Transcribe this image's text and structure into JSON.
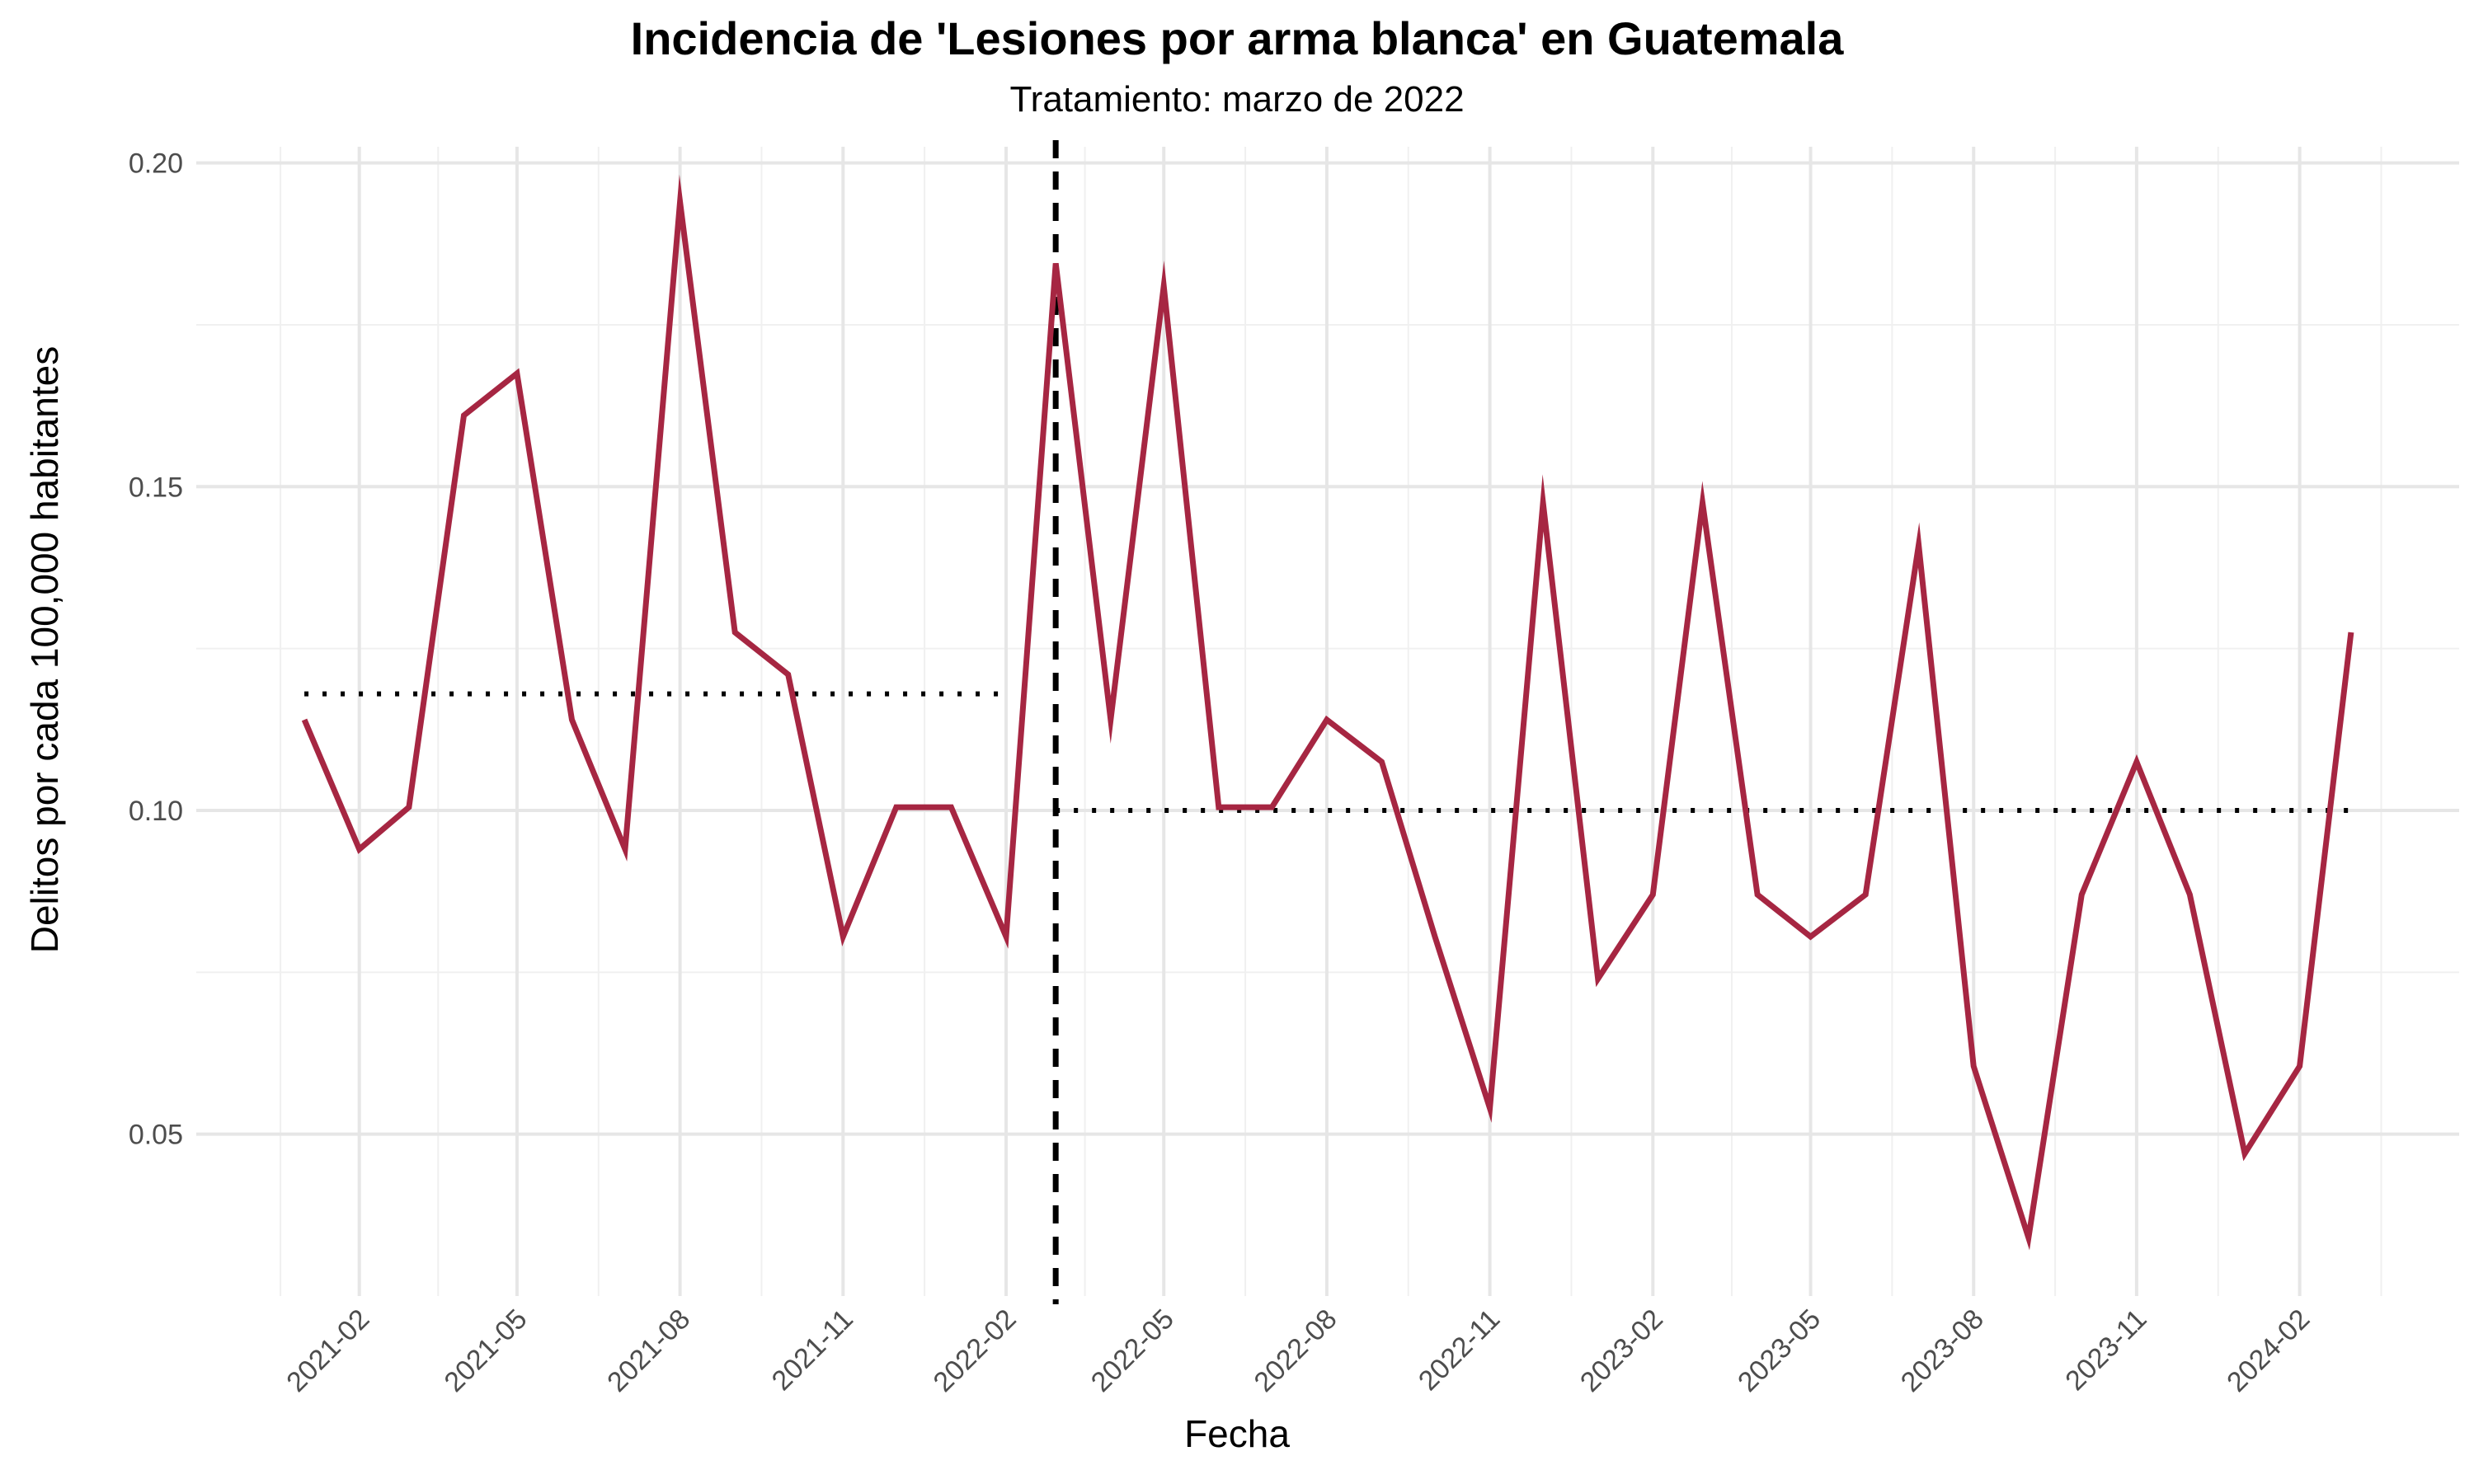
{
  "chart_data": {
    "type": "line",
    "title": "Incidencia de 'Lesiones por arma blanca' en Guatemala",
    "subtitle": "Tratamiento: marzo de 2022",
    "xlabel": "Fecha",
    "ylabel": "Delitos por cada 100,000 habitantes",
    "xlim": [
      "2020-11-01",
      "2024-05-01"
    ],
    "ylim": [
      0.025,
      0.2025
    ],
    "y_ticks": [
      0.05,
      0.1,
      0.15,
      0.2
    ],
    "y_tick_labels": [
      "0.05",
      "0.10",
      "0.15",
      "0.20"
    ],
    "x_ticks": [
      "2021-02-01",
      "2021-05-01",
      "2021-08-01",
      "2021-11-01",
      "2022-02-01",
      "2022-05-01",
      "2022-08-01",
      "2022-11-01",
      "2023-02-01",
      "2023-05-01",
      "2023-08-01",
      "2023-11-01",
      "2024-02-01"
    ],
    "x_tick_labels": [
      "2021-02",
      "2021-05",
      "2021-08",
      "2021-11",
      "2022-02",
      "2022-05",
      "2022-08",
      "2022-11",
      "2023-02",
      "2023-05",
      "2023-08",
      "2023-11",
      "2024-02"
    ],
    "grid": true,
    "line_color": "#A62642",
    "series": [
      {
        "x": [
          "2021-01-01",
          "2021-02-01",
          "2021-03-01",
          "2021-04-01",
          "2021-05-01",
          "2021-06-01",
          "2021-07-01",
          "2021-08-01",
          "2021-09-01",
          "2021-10-01",
          "2021-11-01",
          "2021-12-01",
          "2022-01-01",
          "2022-02-01",
          "2022-03-01",
          "2022-04-01",
          "2022-05-01",
          "2022-06-01",
          "2022-07-01",
          "2022-08-01",
          "2022-09-01",
          "2022-10-01",
          "2022-11-01",
          "2022-12-01",
          "2023-01-01",
          "2023-02-01",
          "2023-03-01",
          "2023-04-01",
          "2023-05-01",
          "2023-06-01",
          "2023-07-01",
          "2023-08-01",
          "2023-09-01",
          "2023-10-01",
          "2023-11-01",
          "2023-12-01",
          "2024-01-01",
          "2024-02-01",
          "2024-03-01"
        ],
        "values": [
          0.114,
          0.094,
          0.1005,
          0.161,
          0.1675,
          0.114,
          0.094,
          0.194,
          0.1275,
          0.121,
          0.0805,
          0.1005,
          0.1005,
          0.0805,
          0.1845,
          0.114,
          0.181,
          0.1005,
          0.1005,
          0.114,
          0.1075,
          0.0805,
          0.054,
          0.1475,
          0.074,
          0.087,
          0.1475,
          0.087,
          0.0805,
          0.087,
          0.141,
          0.0605,
          0.034,
          0.087,
          0.1075,
          0.087,
          0.047,
          0.0605,
          0.1275
        ]
      }
    ],
    "treatment_date": "2022-03-01",
    "pre_mean": {
      "value": 0.118,
      "from": "2021-01-01",
      "to": "2022-02-01"
    },
    "post_mean": {
      "value": 0.1,
      "from": "2022-03-01",
      "to": "2024-03-01"
    }
  }
}
